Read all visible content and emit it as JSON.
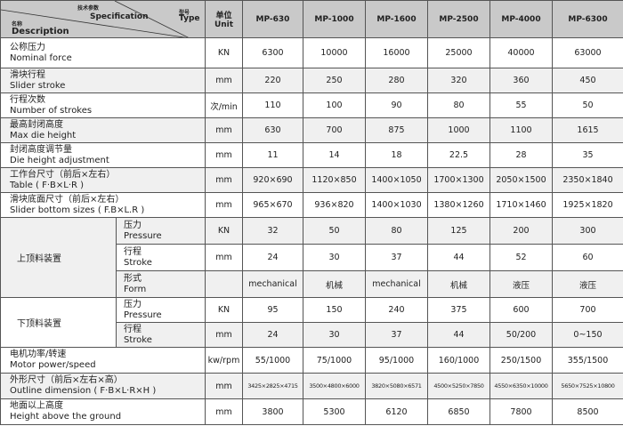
{
  "header": {
    "spec_cn": "技术参数",
    "spec_en": "Specification",
    "type_cn": "型号",
    "type_en": "Type",
    "desc_cn": "名称",
    "desc_en": "Description",
    "unit_cn": "单位",
    "unit_en": "Unit",
    "models": [
      "MP-630",
      "MP-1000",
      "MP-1600",
      "MP-2500",
      "MP-4000",
      "MP-6300"
    ]
  },
  "rows": [
    {
      "cn": "公称压力",
      "en": "Nominal force",
      "unit": "KN",
      "values": [
        "6300",
        "10000",
        "16000",
        "25000",
        "40000",
        "63000"
      ]
    },
    {
      "cn": "滑块行程",
      "en": "Slider stroke",
      "unit": "mm",
      "values": [
        "220",
        "250",
        "280",
        "320",
        "360",
        "450"
      ]
    },
    {
      "cn": "行程次数",
      "en": "Number of strokes",
      "unit": "次/min",
      "values": [
        "110",
        "100",
        "90",
        "80",
        "55",
        "50"
      ]
    },
    {
      "cn": "最高封闭高度",
      "en": "Max die height",
      "unit": "mm",
      "values": [
        "630",
        "700",
        "875",
        "1000",
        "1100",
        "1615"
      ]
    },
    {
      "cn": "封闭高度调节量",
      "en": "Die height adjustment",
      "unit": "mm",
      "values": [
        "11",
        "14",
        "18",
        "22.5",
        "28",
        "35"
      ]
    },
    {
      "cn": "工作台尺寸（前后×左右）",
      "en": "Table ( F·B×L·R )",
      "unit": "mm",
      "values": [
        "920×690",
        "1120×850",
        "1400×1050",
        "1700×1300",
        "2050×1500",
        "2350×1840"
      ]
    },
    {
      "cn": "滑块底面尺寸（前后×左右）",
      "en": "Slider bottom sizes ( F.B×L.R )",
      "unit": "mm",
      "values": [
        "965×670",
        "936×820",
        "1400×1030",
        "1380×1260",
        "1710×1460",
        "1925×1820"
      ]
    }
  ],
  "groups": [
    {
      "label": "上顶料装置",
      "sub": [
        {
          "cn": "压力",
          "en": "Pressure",
          "unit": "KN",
          "values": [
            "32",
            "50",
            "80",
            "125",
            "200",
            "300"
          ]
        },
        {
          "cn": "行程",
          "en": "Stroke",
          "unit": "mm",
          "values": [
            "24",
            "30",
            "37",
            "44",
            "52",
            "60"
          ]
        },
        {
          "cn": "形式",
          "en": "Form",
          "unit": "",
          "values": [
            "mechanical",
            "机械",
            "mechanical",
            "机械",
            "液压",
            "液压"
          ]
        }
      ]
    },
    {
      "label": "下顶料装置",
      "sub": [
        {
          "cn": "压力",
          "en": "Pressure",
          "unit": "KN",
          "values": [
            "95",
            "150",
            "240",
            "375",
            "600",
            "700"
          ]
        },
        {
          "cn": "行程",
          "en": "Stroke",
          "unit": "mm",
          "values": [
            "24",
            "30",
            "37",
            "44",
            "50/200",
            "0~150"
          ]
        }
      ]
    }
  ],
  "tail_rows": [
    {
      "cn": "电机功率/转速",
      "en": "Motor power/speed",
      "unit": "kw/rpm",
      "values": [
        "55/1000",
        "75/1000",
        "95/1000",
        "160/1000",
        "250/1500",
        "355/1500"
      ]
    },
    {
      "cn": "外形尺寸（前后×左右×高）",
      "en": "Outline dimension ( F·B×L·R×H )",
      "unit": "mm",
      "small": true,
      "values": [
        "3425×2825×4715",
        "3500×4800×6000",
        "3820×5080×6571",
        "4500×5250×7850",
        "4550×6350×10000",
        "5650×7525×10800"
      ]
    },
    {
      "cn": "地面以上高度",
      "en": "Height above the ground",
      "unit": "mm",
      "values": [
        "3800",
        "5300",
        "6120",
        "6850",
        "7800",
        "8500"
      ]
    }
  ]
}
